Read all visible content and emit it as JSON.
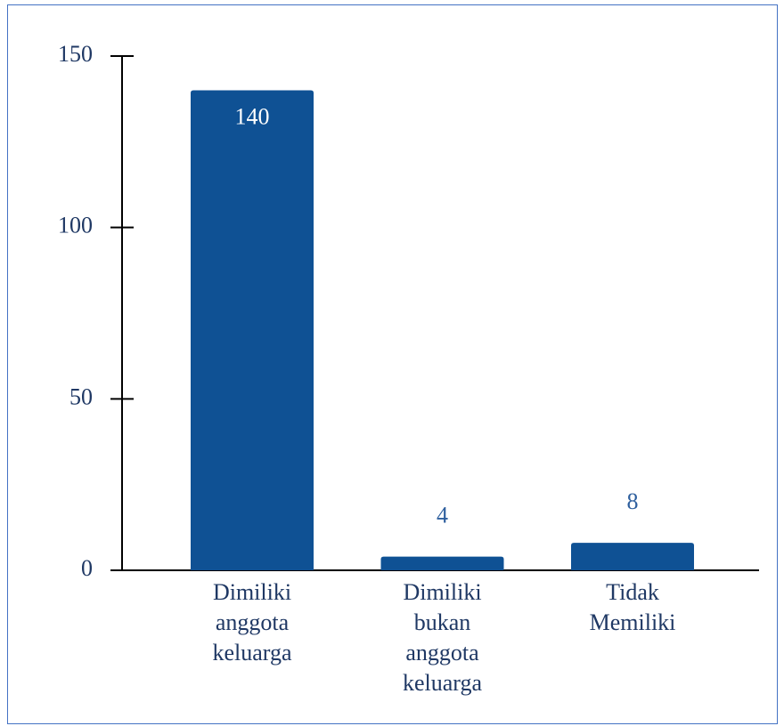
{
  "chart_data": {
    "type": "bar",
    "categories": [
      "Dimiliki anggota keluarga",
      "Dimiliki bukan anggota keluarga",
      "Tidak Memiliki"
    ],
    "values": [
      140,
      4,
      8
    ],
    "color": "#0f5194",
    "ylim": [
      0,
      150
    ],
    "yticks": [
      0,
      50,
      100,
      150
    ],
    "grid": false
  }
}
